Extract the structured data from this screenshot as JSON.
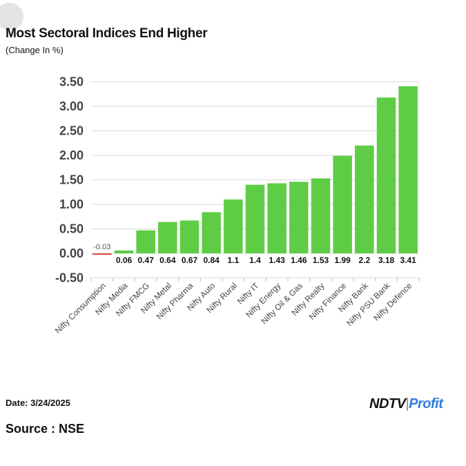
{
  "header": {
    "title": "Most Sectoral Indices End Higher",
    "subtitle": "(Change In %)"
  },
  "footer": {
    "date": "Date: 3/24/2025",
    "source": "Source : NSE",
    "logo_main": "NDTV",
    "logo_sub": "Profit"
  },
  "colors": {
    "positive": "#5fcc45",
    "negative": "#e04a3a"
  },
  "chart_data": {
    "type": "bar",
    "title": "Most Sectoral Indices End Higher",
    "subtitle": "(Change In %)",
    "xlabel": "",
    "ylabel": "",
    "ylim": [
      -0.5,
      3.5
    ],
    "yticks": [
      3.5,
      3.0,
      2.5,
      2.0,
      1.5,
      1.0,
      0.5,
      0.0,
      -0.5
    ],
    "ytick_labels": [
      "3.50",
      "3.00",
      "2.50",
      "2.00",
      "1.50",
      "1.00",
      "0.50",
      "0.00",
      "-0.50"
    ],
    "grid": true,
    "legend": "none",
    "categories": [
      "Nifty Consumption",
      "Nifty Media",
      "Nifty FMCG",
      "Nifty Metal",
      "Nifty Pharma",
      "Nifty Auto",
      "Nifty Rural",
      "Nifty IT",
      "Nifty Energy",
      "Nifty Oil & Gas",
      "Nifty Realty",
      "Nifty Finance",
      "Nifty Bank",
      "Nifty PSU Bank",
      "Nifty Defence"
    ],
    "values": [
      -0.03,
      0.06,
      0.47,
      0.64,
      0.67,
      0.84,
      1.1,
      1.4,
      1.43,
      1.46,
      1.53,
      1.99,
      2.2,
      3.18,
      3.41
    ],
    "value_labels": [
      "-0.03",
      "0.06",
      "0.47",
      "0.64",
      "0.67",
      "0.84",
      "1.1",
      "1.4",
      "1.43",
      "1.46",
      "1.53",
      "1.99",
      "2.2",
      "3.18",
      "3.41"
    ]
  }
}
